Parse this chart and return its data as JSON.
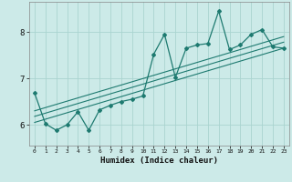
{
  "title": "",
  "xlabel": "Humidex (Indice chaleur)",
  "ylabel": "",
  "bg_color": "#cceae8",
  "grid_color": "#aad4d0",
  "line_color": "#1e7a70",
  "x_values": [
    0,
    1,
    2,
    3,
    4,
    5,
    6,
    7,
    8,
    9,
    10,
    11,
    12,
    13,
    14,
    15,
    16,
    17,
    18,
    19,
    20,
    21,
    22,
    23
  ],
  "y_values": [
    6.68,
    6.02,
    5.88,
    6.0,
    6.28,
    5.88,
    6.32,
    6.42,
    6.5,
    6.55,
    6.62,
    7.52,
    7.95,
    7.02,
    7.65,
    7.72,
    7.75,
    8.45,
    7.62,
    7.72,
    7.95,
    8.05,
    7.68,
    7.65
  ],
  "trend1_x": [
    0,
    23
  ],
  "trend1_y": [
    6.05,
    7.65
  ],
  "trend2_x": [
    0,
    23
  ],
  "trend2_y": [
    6.18,
    7.78
  ],
  "trend3_x": [
    0,
    23
  ],
  "trend3_y": [
    6.3,
    7.9
  ],
  "xlim": [
    -0.5,
    23.5
  ],
  "ylim": [
    5.55,
    8.65
  ],
  "yticks": [
    6,
    7,
    8
  ],
  "xticks": [
    0,
    1,
    2,
    3,
    4,
    5,
    6,
    7,
    8,
    9,
    10,
    11,
    12,
    13,
    14,
    15,
    16,
    17,
    18,
    19,
    20,
    21,
    22,
    23
  ]
}
